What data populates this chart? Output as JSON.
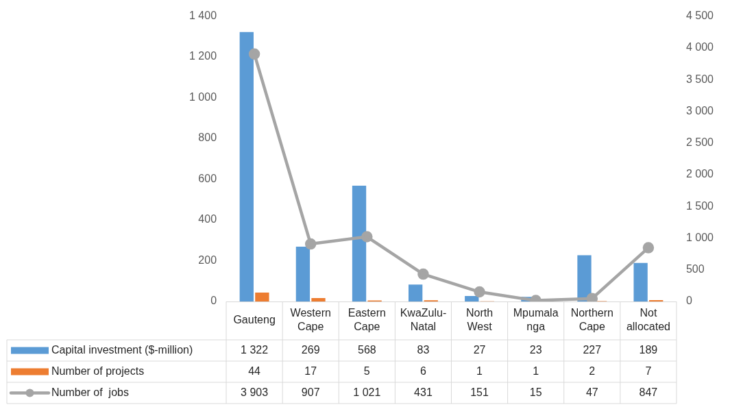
{
  "chart_data": {
    "type": "bar",
    "categories": [
      "Gauteng",
      "Western Cape",
      "Eastern Cape",
      "KwaZulu-Natal",
      "North West",
      "Mpumalanga",
      "Northern Cape",
      "Not allocated"
    ],
    "series": [
      {
        "name": "Capital investment ($-million)",
        "color": "#5b9bd5",
        "values": [
          1322,
          269,
          568,
          83,
          27,
          23,
          227,
          189
        ],
        "value_labels": [
          "1 322",
          "269",
          "568",
          "83",
          "27",
          "23",
          "227",
          "189"
        ]
      },
      {
        "name": "Number of projects",
        "color": "#ed7d31",
        "values": [
          44,
          17,
          5,
          6,
          1,
          1,
          2,
          7
        ],
        "value_labels": [
          "44",
          "17",
          "5",
          "6",
          "1",
          "1",
          "2",
          "7"
        ]
      },
      {
        "name": "Number of  jobs",
        "type": "line",
        "axis": "y2",
        "color": "#a5a5a5",
        "values": [
          3903,
          907,
          1021,
          431,
          151,
          15,
          47,
          847
        ],
        "value_labels": [
          "3 903",
          "907",
          "1 021",
          "431",
          "151",
          "15",
          "47",
          "847"
        ]
      }
    ],
    "ylim": [
      0,
      1400
    ],
    "yticks": [
      0,
      200,
      400,
      600,
      800,
      {
        "value": 1000,
        "label": "1 000"
      },
      {
        "value": 1200,
        "label": "1 200"
      },
      {
        "value": 1400,
        "label": "1 400"
      }
    ],
    "y2lim": [
      0,
      4500
    ],
    "y2ticks": [
      0,
      500,
      {
        "value": 1000,
        "label": "1 000"
      },
      {
        "value": 1500,
        "label": "1 500"
      },
      {
        "value": 2000,
        "label": "2 000"
      },
      {
        "value": 2500,
        "label": "2 500"
      },
      {
        "value": 3000,
        "label": "3 000"
      },
      {
        "value": 3500,
        "label": "3 500"
      },
      {
        "value": 4000,
        "label": "4 000"
      },
      {
        "value": 4500,
        "label": "4 500"
      }
    ],
    "marker": "circle",
    "grid": false,
    "legend": "bottom"
  }
}
